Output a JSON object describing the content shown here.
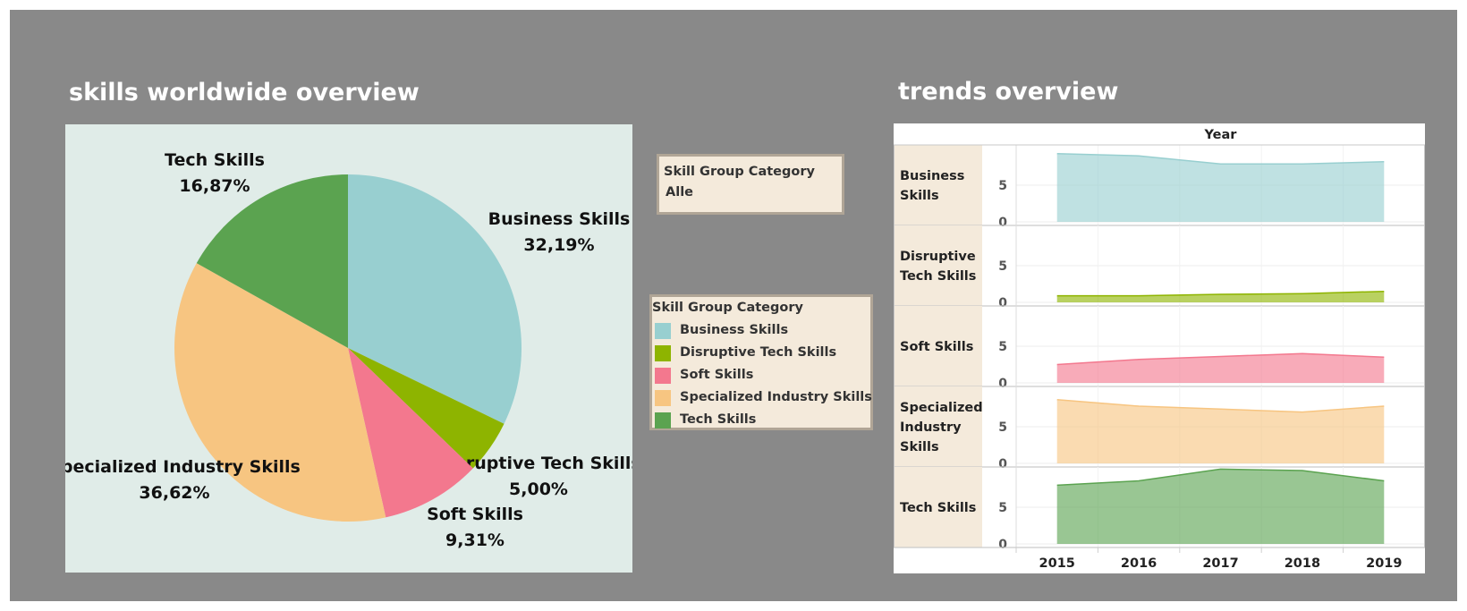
{
  "dashboard": {
    "pie_title": "skills worldwide overview",
    "trend_title": "trends overview"
  },
  "filter": {
    "title": "Skill Group Category",
    "value": "Alle"
  },
  "legend": {
    "title": "Skill Group Category",
    "items": [
      {
        "label": "Business Skills",
        "color": "#98cfd0"
      },
      {
        "label": "Disruptive Tech Skills",
        "color": "#8eb400"
      },
      {
        "label": "Soft Skills",
        "color": "#f3788e"
      },
      {
        "label": "Specialized Industry Skills",
        "color": "#f7c581"
      },
      {
        "label": "Tech Skills",
        "color": "#5ba350"
      }
    ]
  },
  "chart_data": [
    {
      "type": "pie",
      "title": "skills worldwide overview",
      "slices": [
        {
          "label": "Business Skills",
          "value": 32.19,
          "display": "32,19%",
          "color": "#98cfd0"
        },
        {
          "label": "Disruptive Tech Skills",
          "value": 5.0,
          "display": "5,00%",
          "color": "#8eb400"
        },
        {
          "label": "Soft Skills",
          "value": 9.31,
          "display": "9,31%",
          "color": "#f3788e"
        },
        {
          "label": "Specialized Industry Skills",
          "value": 36.62,
          "display": "36,62%",
          "color": "#f7c581"
        },
        {
          "label": "Tech Skills",
          "value": 16.87,
          "display": "16,87%",
          "color": "#5ba350"
        }
      ]
    },
    {
      "type": "area",
      "title": "trends overview",
      "column_header": "Year",
      "x": [
        "2015",
        "2016",
        "2017",
        "2018",
        "2019"
      ],
      "y_ticks": [
        0,
        5
      ],
      "ylim": [
        0,
        10
      ],
      "grid": true,
      "series": [
        {
          "name": "Business Skills",
          "lines": [
            "Business",
            "Skills"
          ],
          "color": "#98cfd0",
          "values": [
            9.3,
            9.0,
            7.9,
            7.9,
            8.2
          ]
        },
        {
          "name": "Disruptive Tech Skills",
          "lines": [
            "Disruptive",
            "Tech Skills"
          ],
          "color": "#8eb400",
          "values": [
            0.9,
            0.9,
            1.1,
            1.2,
            1.5
          ]
        },
        {
          "name": "Soft Skills",
          "lines": [
            "Soft Skills"
          ],
          "color": "#f3788e",
          "values": [
            2.5,
            3.2,
            3.6,
            4.0,
            3.5
          ]
        },
        {
          "name": "Specialized Industry Skills",
          "lines": [
            "Specialized",
            "Industry",
            "Skills"
          ],
          "color": "#f7c581",
          "values": [
            8.7,
            7.8,
            7.4,
            7.0,
            7.8
          ]
        },
        {
          "name": "Tech Skills",
          "lines": [
            "Tech Skills"
          ],
          "color": "#5ba350",
          "values": [
            8.0,
            8.6,
            10.2,
            10.0,
            8.6
          ]
        }
      ]
    }
  ]
}
